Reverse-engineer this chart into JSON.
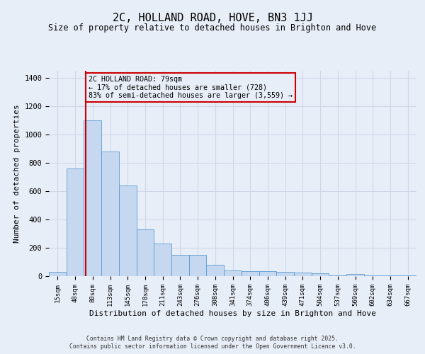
{
  "title": "2C, HOLLAND ROAD, HOVE, BN3 1JJ",
  "subtitle": "Size of property relative to detached houses in Brighton and Hove",
  "xlabel": "Distribution of detached houses by size in Brighton and Hove",
  "ylabel": "Number of detached properties",
  "footer_line1": "Contains HM Land Registry data © Crown copyright and database right 2025.",
  "footer_line2": "Contains public sector information licensed under the Open Government Licence v3.0.",
  "bin_labels": [
    "15sqm",
    "48sqm",
    "80sqm",
    "113sqm",
    "145sqm",
    "178sqm",
    "211sqm",
    "243sqm",
    "276sqm",
    "308sqm",
    "341sqm",
    "374sqm",
    "406sqm",
    "439sqm",
    "471sqm",
    "504sqm",
    "537sqm",
    "569sqm",
    "602sqm",
    "634sqm",
    "667sqm"
  ],
  "bar_values": [
    30,
    760,
    1100,
    880,
    640,
    330,
    230,
    150,
    150,
    80,
    40,
    35,
    35,
    30,
    25,
    20,
    5,
    15,
    5,
    5,
    5
  ],
  "bar_color": "#c5d8f0",
  "bar_edge_color": "#5b9bd5",
  "grid_color": "#d0d8e8",
  "background_color": "#e8eef8",
  "red_line_x": 1.62,
  "annotation_text": "2C HOLLAND ROAD: 79sqm\n← 17% of detached houses are smaller (728)\n83% of semi-detached houses are larger (3,559) →",
  "annotation_box_color": "#cc0000",
  "ylim": [
    0,
    1450
  ],
  "yticks": [
    0,
    200,
    400,
    600,
    800,
    1000,
    1200,
    1400
  ],
  "title_fontsize": 11,
  "subtitle_fontsize": 8.5,
  "xlabel_fontsize": 8.0,
  "ylabel_fontsize": 8.0,
  "xtick_fontsize": 6.5,
  "ytick_fontsize": 7.5,
  "annot_fontsize": 7.2,
  "footer_fontsize": 5.8
}
